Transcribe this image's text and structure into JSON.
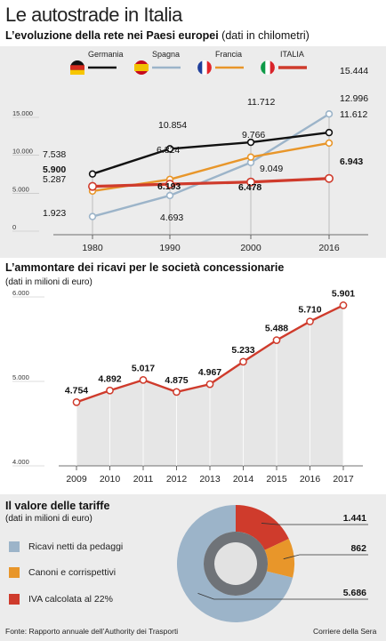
{
  "title": "Le autostrade in Italia",
  "chart1_title": "L’evoluzione della rete nei Paesi europei",
  "chart1_title_paren": "(dati in chilometri)",
  "chart2_title": "L’ammontare dei ricavi per le società concessionarie",
  "chart2_note": "(dati in milioni di euro)",
  "chart3_title": "Il valore delle tariffe",
  "chart3_note": "(dati in milioni di euro)",
  "source": "Fonte: Rapporto annuale dell’Authority dei Trasporti",
  "credit": "Corriere della Sera",
  "colors": {
    "germania": "#111111",
    "spagna": "#9cb4c9",
    "francia": "#e8962a",
    "italia": "#cf3b2c",
    "ricavi_line": "#cf3b2c",
    "area": "#e6e6e6",
    "pie_pedaggi": "#9cb4c9",
    "pie_canoni": "#e8962a",
    "pie_iva": "#cf3b2c"
  },
  "chart_data": [
    {
      "type": "line",
      "x": [
        "1980",
        "1990",
        "2000",
        "2016"
      ],
      "ylim": [
        0,
        16000
      ],
      "yticks": [
        "15.000",
        "10.000",
        "5.000",
        "0"
      ],
      "series": [
        {
          "name": "Germania",
          "icon": "germany-flag-icon",
          "values": [
            7538,
            10854,
            11712,
            12996
          ],
          "labels": [
            "7.538",
            "10.854",
            "11.712",
            "12.996"
          ]
        },
        {
          "name": "Spagna",
          "icon": "spain-flag-icon",
          "values": [
            1923,
            4693,
            9049,
            15444
          ],
          "labels": [
            "1.923",
            "4.693",
            "9.049",
            "15.444"
          ]
        },
        {
          "name": "Francia",
          "icon": "france-flag-icon",
          "values": [
            5287,
            6824,
            9766,
            11612
          ],
          "labels": [
            "5.287",
            "6.824",
            "9.766",
            "11.612"
          ]
        },
        {
          "name": "ITALIA",
          "icon": "italy-flag-icon",
          "values": [
            5900,
            6193,
            6478,
            6943
          ],
          "labels": [
            "5.900",
            "6.193",
            "6.478",
            "6.943"
          ]
        }
      ]
    },
    {
      "type": "line",
      "x": [
        "2009",
        "2010",
        "2011",
        "2012",
        "2013",
        "2014",
        "2015",
        "2016",
        "2017"
      ],
      "values": [
        4754,
        4892,
        5017,
        4875,
        4967,
        5233,
        5488,
        5710,
        5901
      ],
      "labels": [
        "4.754",
        "4.892",
        "5.017",
        "4.875",
        "4.967",
        "5.233",
        "5.488",
        "5.710",
        "5.901"
      ],
      "ylim": [
        4000,
        6000
      ],
      "yticks": [
        "6.000",
        "5.000",
        "4.000"
      ]
    },
    {
      "type": "pie",
      "categories": [
        "Ricavi netti da pedaggi",
        "Canoni e corrispettivi",
        "IVA calcolata al 22%"
      ],
      "values": [
        5686,
        862,
        1441
      ],
      "labels": [
        "5.686",
        "862",
        "1.441"
      ]
    }
  ]
}
